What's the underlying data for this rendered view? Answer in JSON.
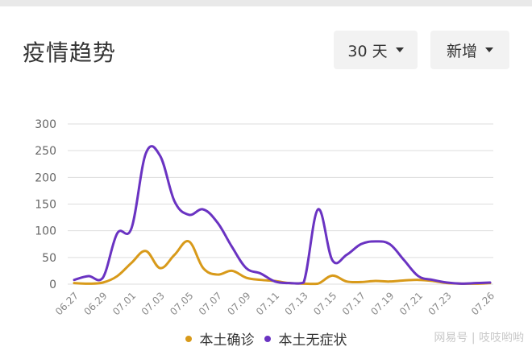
{
  "header": {
    "title": "疫情趋势",
    "range_dropdown": "30 天",
    "mode_dropdown": "新增"
  },
  "watermark": "网易号 | 吱吱哟哟",
  "colors": {
    "confirmed": "#d89a1a",
    "asymptomatic": "#6a33c2",
    "grid": "#dddddd",
    "axis_text": "#666666"
  },
  "chart_data": {
    "type": "line",
    "title": "",
    "xlabel": "",
    "ylabel": "",
    "ylim": [
      0,
      300
    ],
    "yticks": [
      0,
      50,
      100,
      150,
      200,
      250,
      300
    ],
    "grid": true,
    "legend_position": "bottom",
    "x": [
      "06.27",
      "06.28",
      "06.29",
      "06.30",
      "07.01",
      "07.02",
      "07.03",
      "07.04",
      "07.05",
      "07.06",
      "07.07",
      "07.08",
      "07.09",
      "07.10",
      "07.11",
      "07.12",
      "07.13",
      "07.14",
      "07.15",
      "07.16",
      "07.17",
      "07.18",
      "07.19",
      "07.20",
      "07.21",
      "07.22",
      "07.23",
      "07.24",
      "07.25",
      "07.26"
    ],
    "xtick_labels": [
      "06.27",
      "06.29",
      "07.01",
      "07.03",
      "07.05",
      "07.07",
      "07.09",
      "07.11",
      "07.13",
      "07.15",
      "07.17",
      "07.19",
      "07.21",
      "07.23",
      "07.26"
    ],
    "series": [
      {
        "name": "本土确诊",
        "color": "#d89a1a",
        "values": [
          2,
          1,
          3,
          15,
          40,
          62,
          30,
          55,
          80,
          30,
          18,
          25,
          12,
          8,
          6,
          2,
          1,
          1,
          16,
          5,
          4,
          6,
          5,
          7,
          8,
          6,
          2,
          1,
          1,
          2
        ]
      },
      {
        "name": "本土无症状",
        "color": "#6a33c2",
        "values": [
          8,
          15,
          12,
          95,
          105,
          245,
          240,
          155,
          130,
          140,
          115,
          70,
          30,
          20,
          5,
          2,
          3,
          140,
          45,
          55,
          75,
          80,
          75,
          45,
          15,
          8,
          3,
          1,
          2,
          3
        ]
      }
    ]
  }
}
